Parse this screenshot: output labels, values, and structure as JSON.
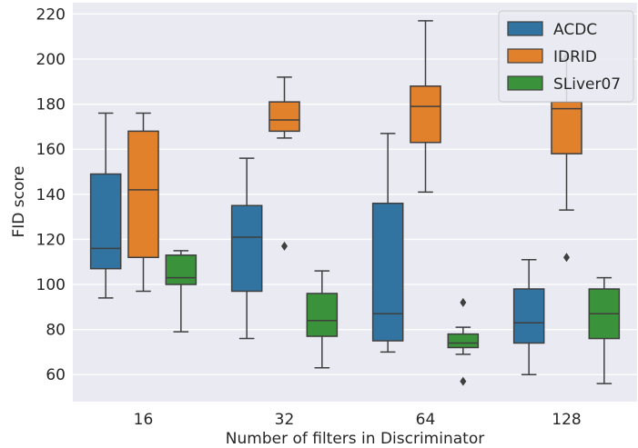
{
  "chart_data": {
    "type": "boxplot",
    "xlabel": "Number of filters in Discriminator",
    "ylabel": "FID score",
    "categories": [
      "16",
      "32",
      "64",
      "128"
    ],
    "ylim": [
      48,
      225
    ],
    "yticks": [
      60,
      80,
      100,
      120,
      140,
      160,
      180,
      200,
      220
    ],
    "grid": true,
    "legend_position": "top-right",
    "series": [
      {
        "name": "ACDC",
        "color": "#3274a1",
        "boxes": [
          {
            "whislo": 94,
            "q1": 107,
            "med": 116,
            "q3": 149,
            "whishi": 176,
            "fliers": []
          },
          {
            "whislo": 76,
            "q1": 97,
            "med": 121,
            "q3": 135,
            "whishi": 156,
            "fliers": []
          },
          {
            "whislo": 70,
            "q1": 75,
            "med": 87,
            "q3": 136,
            "whishi": 167,
            "fliers": []
          },
          {
            "whislo": 60,
            "q1": 74,
            "med": 83,
            "q3": 98,
            "whishi": 111,
            "fliers": []
          }
        ]
      },
      {
        "name": "IDRID",
        "color": "#e1812c",
        "boxes": [
          {
            "whislo": 97,
            "q1": 112,
            "med": 142,
            "q3": 168,
            "whishi": 176,
            "fliers": []
          },
          {
            "whislo": 165,
            "q1": 168,
            "med": 173,
            "q3": 181,
            "whishi": 192,
            "fliers": [
              117
            ]
          },
          {
            "whislo": 141,
            "q1": 163,
            "med": 179,
            "q3": 188,
            "whishi": 217,
            "fliers": []
          },
          {
            "whislo": 133,
            "q1": 158,
            "med": 178,
            "q3": 181,
            "whishi": 200,
            "fliers": [
              112,
              201
            ]
          }
        ]
      },
      {
        "name": "SLiver07",
        "color": "#3a923a",
        "boxes": [
          {
            "whislo": 79,
            "q1": 100,
            "med": 103,
            "q3": 113,
            "whishi": 115,
            "fliers": []
          },
          {
            "whislo": 63,
            "q1": 77,
            "med": 84,
            "q3": 96,
            "whishi": 106,
            "fliers": []
          },
          {
            "whislo": 69,
            "q1": 72,
            "med": 74,
            "q3": 78,
            "whishi": 81,
            "fliers": [
              57,
              92
            ]
          },
          {
            "whislo": 56,
            "q1": 76,
            "med": 87,
            "q3": 98,
            "whishi": 103,
            "fliers": []
          }
        ]
      }
    ]
  }
}
